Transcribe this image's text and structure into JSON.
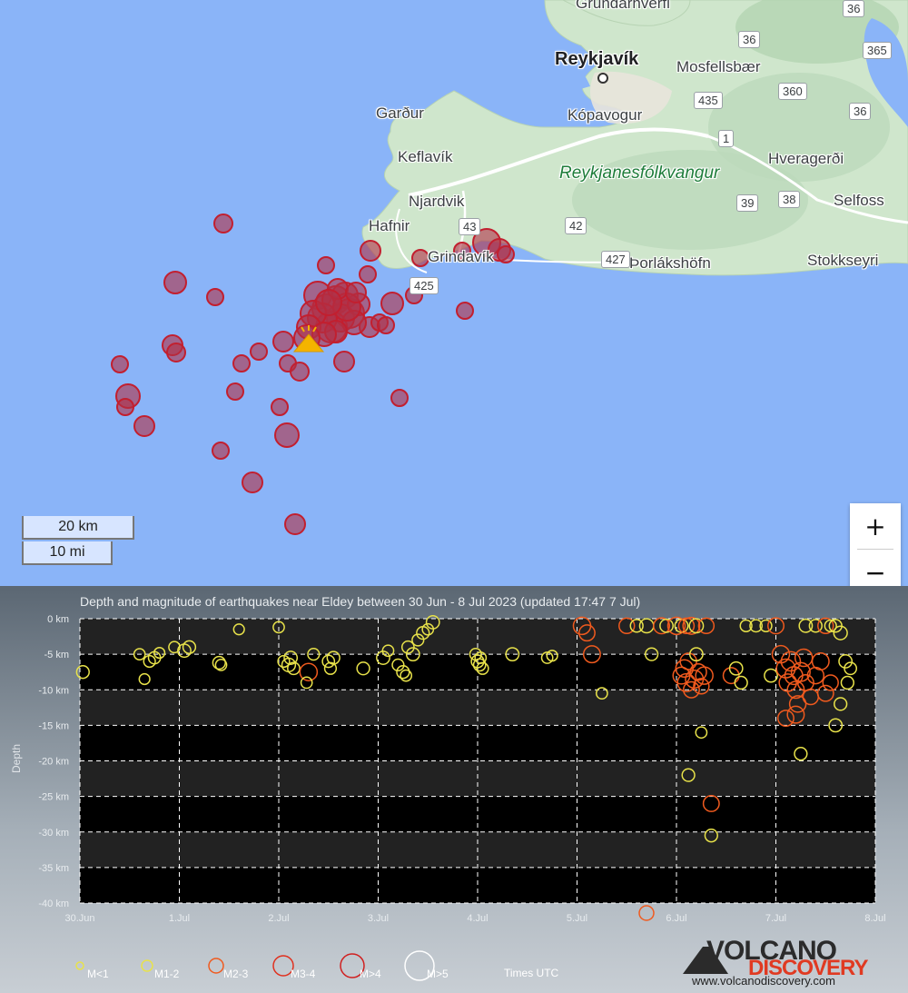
{
  "map": {
    "places": [
      {
        "name": "Grundarhverfi",
        "type": "town"
      },
      {
        "name": "Reykjavík",
        "type": "city"
      },
      {
        "name": "Mosfellsbær",
        "type": "town"
      },
      {
        "name": "Kópavogur",
        "type": "town"
      },
      {
        "name": "Garður",
        "type": "town"
      },
      {
        "name": "Keflavík",
        "type": "town"
      },
      {
        "name": "Reykjanesfólkvangur",
        "type": "park"
      },
      {
        "name": "Hveragerði",
        "type": "town"
      },
      {
        "name": "Njardvik",
        "type": "town"
      },
      {
        "name": "Hafnir",
        "type": "town"
      },
      {
        "name": "Selfoss",
        "type": "town"
      },
      {
        "name": "Grindavík",
        "type": "town"
      },
      {
        "name": "Þorlákshöfn",
        "type": "town"
      },
      {
        "name": "Stokkseyri",
        "type": "town"
      }
    ],
    "roads": [
      "36",
      "36",
      "365",
      "435",
      "360",
      "36",
      "1",
      "39",
      "38",
      "43",
      "42",
      "427",
      "425"
    ],
    "scale": {
      "km": "20 km",
      "mi": "10 mi"
    },
    "zoom": {
      "in": "+",
      "out": "−"
    },
    "colors": {
      "water": "#8ab4f8",
      "land": "#c9e3c9",
      "quake_fill": "#b03046",
      "quake_stroke": "#c21f2f",
      "volcano": "#f4b400"
    }
  },
  "chart_data": {
    "type": "scatter",
    "title": "Depth and magnitude of earthquakes near Eldey between 30 Jun - 8 Jul 2023 (updated 17:47 7 Jul)",
    "ylabel": "Depth",
    "xlabel": "",
    "x_ticks": [
      "30.Jun",
      "1.Jul",
      "2.Jul",
      "3.Jul",
      "4.Jul",
      "5.Jul",
      "6.Jul",
      "7.Jul",
      "8.Jul"
    ],
    "y_ticks": [
      "0 km",
      "-5 km",
      "-10 km",
      "-15 km",
      "-20 km",
      "-25 km",
      "-30 km",
      "-35 km",
      "-40 km"
    ],
    "xlim": [
      0,
      8
    ],
    "ylim": [
      -40,
      0
    ],
    "grid": true,
    "legend": [
      "M<1",
      "M1-2",
      "M2-3",
      "M3-4",
      "M>4",
      "M>5"
    ],
    "legend_colors": [
      "#e8e24a",
      "#e8e24a",
      "#f05a1e",
      "#e0301e",
      "#d02020",
      "#ffffff"
    ],
    "note": "Times UTC",
    "points": [
      [
        0.03,
        -7.5,
        1.5
      ],
      [
        0.6,
        -5,
        1.2
      ],
      [
        0.65,
        -8.5,
        1.1
      ],
      [
        0.7,
        -6,
        1.3
      ],
      [
        0.75,
        -5.5,
        1.4
      ],
      [
        0.8,
        -4.8,
        1.1
      ],
      [
        0.95,
        -4,
        1.2
      ],
      [
        1.05,
        -4.5,
        1.6
      ],
      [
        1.1,
        -4,
        1.5
      ],
      [
        1.4,
        -6.2,
        1.5
      ],
      [
        1.42,
        -6.5,
        1.2
      ],
      [
        1.6,
        -1.5,
        1.1
      ],
      [
        2.0,
        -1.2,
        1.2
      ],
      [
        2.05,
        -6,
        1.3
      ],
      [
        2.1,
        -6.5,
        1.7
      ],
      [
        2.12,
        -5.5,
        1.6
      ],
      [
        2.15,
        -7,
        1.4
      ],
      [
        2.3,
        -7.5,
        2.5
      ],
      [
        2.28,
        -9,
        1.2
      ],
      [
        2.35,
        -5,
        1.3
      ],
      [
        2.5,
        -6,
        1.4
      ],
      [
        2.52,
        -7,
        1.3
      ],
      [
        2.55,
        -5.5,
        1.5
      ],
      [
        2.85,
        -7,
        1.5
      ],
      [
        3.05,
        -5.5,
        1.6
      ],
      [
        3.1,
        -4.5,
        1.2
      ],
      [
        3.2,
        -6.5,
        1.3
      ],
      [
        3.25,
        -7.5,
        1.5
      ],
      [
        3.28,
        -8,
        1.2
      ],
      [
        3.3,
        -4,
        1.4
      ],
      [
        3.35,
        -5,
        1.6
      ],
      [
        3.4,
        -3,
        1.3
      ],
      [
        3.45,
        -2,
        1.5
      ],
      [
        3.5,
        -1.5,
        1.2
      ],
      [
        3.55,
        -0.5,
        1.6
      ],
      [
        3.98,
        -5,
        1.3
      ],
      [
        4.0,
        -6,
        1.5
      ],
      [
        4.02,
        -6.5,
        1.4
      ],
      [
        4.03,
        -5.5,
        1.2
      ],
      [
        4.05,
        -7,
        1.3
      ],
      [
        4.35,
        -5,
        1.6
      ],
      [
        4.7,
        -5.5,
        1.2
      ],
      [
        4.75,
        -5.2,
        1.1
      ],
      [
        5.05,
        -1,
        2.5
      ],
      [
        5.1,
        -2,
        2.2
      ],
      [
        5.15,
        -5,
        2.4
      ],
      [
        5.25,
        -10.5,
        1.2
      ],
      [
        5.5,
        -1,
        2.1
      ],
      [
        5.6,
        -1,
        1.5
      ],
      [
        5.7,
        -1,
        1.8
      ],
      [
        5.75,
        -5,
        1.5
      ],
      [
        5.85,
        -1,
        2.2
      ],
      [
        5.9,
        -1,
        1.6
      ],
      [
        6.0,
        -1,
        2.5
      ],
      [
        6.05,
        -8,
        2.4
      ],
      [
        6.08,
        -7,
        2.5
      ],
      [
        6.1,
        -9,
        2.6
      ],
      [
        6.12,
        -6,
        2.3
      ],
      [
        6.15,
        -10,
        2.2
      ],
      [
        6.18,
        -8.5,
        2.6
      ],
      [
        6.2,
        -5,
        1.6
      ],
      [
        6.22,
        -7.5,
        2.3
      ],
      [
        6.25,
        -9.5,
        2.1
      ],
      [
        6.28,
        -8,
        2.5
      ],
      [
        6.05,
        -1,
        1.6
      ],
      [
        6.1,
        -1,
        2.1
      ],
      [
        6.15,
        -1,
        2.4
      ],
      [
        6.2,
        -1,
        1.8
      ],
      [
        6.3,
        -1,
        2.1
      ],
      [
        6.12,
        -22,
        1.5
      ],
      [
        6.25,
        -16,
        1.2
      ],
      [
        6.35,
        -26,
        2.2
      ],
      [
        6.35,
        -30.5,
        1.5
      ],
      [
        6.55,
        -8,
        2.2
      ],
      [
        6.6,
        -7,
        1.6
      ],
      [
        6.65,
        -9,
        1.5
      ],
      [
        6.7,
        -1,
        1.3
      ],
      [
        6.8,
        -1,
        1.4
      ],
      [
        6.9,
        -1,
        1.3
      ],
      [
        6.95,
        -8,
        1.6
      ],
      [
        7.0,
        -1,
        2.2
      ],
      [
        7.05,
        -5,
        2.5
      ],
      [
        7.1,
        -7,
        2.8
      ],
      [
        7.12,
        -9,
        2.5
      ],
      [
        7.15,
        -6,
        2.9
      ],
      [
        7.18,
        -8,
        2.6
      ],
      [
        7.2,
        -10,
        2.4
      ],
      [
        7.22,
        -12,
        2.3
      ],
      [
        7.25,
        -7.5,
        2.8
      ],
      [
        7.28,
        -5.5,
        2.5
      ],
      [
        7.3,
        -9,
        2.2
      ],
      [
        7.35,
        -11,
        2.1
      ],
      [
        7.4,
        -8,
        2.3
      ],
      [
        7.45,
        -6,
        2.4
      ],
      [
        7.5,
        -10.5,
        2.2
      ],
      [
        7.55,
        -9,
        2.1
      ],
      [
        7.6,
        -15,
        1.6
      ],
      [
        7.65,
        -12,
        1.5
      ],
      [
        7.1,
        -14,
        2.2
      ],
      [
        7.2,
        -13.5,
        2.4
      ],
      [
        7.25,
        -19,
        1.5
      ],
      [
        7.3,
        -1,
        1.6
      ],
      [
        7.4,
        -1,
        1.5
      ],
      [
        7.5,
        -1,
        2.1
      ],
      [
        7.55,
        -1,
        1.3
      ],
      [
        7.6,
        -1,
        1.5
      ],
      [
        7.65,
        -2,
        1.7
      ],
      [
        7.7,
        -6,
        1.6
      ],
      [
        7.72,
        -9,
        1.5
      ],
      [
        7.75,
        -7,
        1.4
      ]
    ]
  },
  "branding": {
    "line1": "VOLCANO",
    "line2": "DISCOVERY",
    "url": "www.volcanodiscovery.com"
  }
}
